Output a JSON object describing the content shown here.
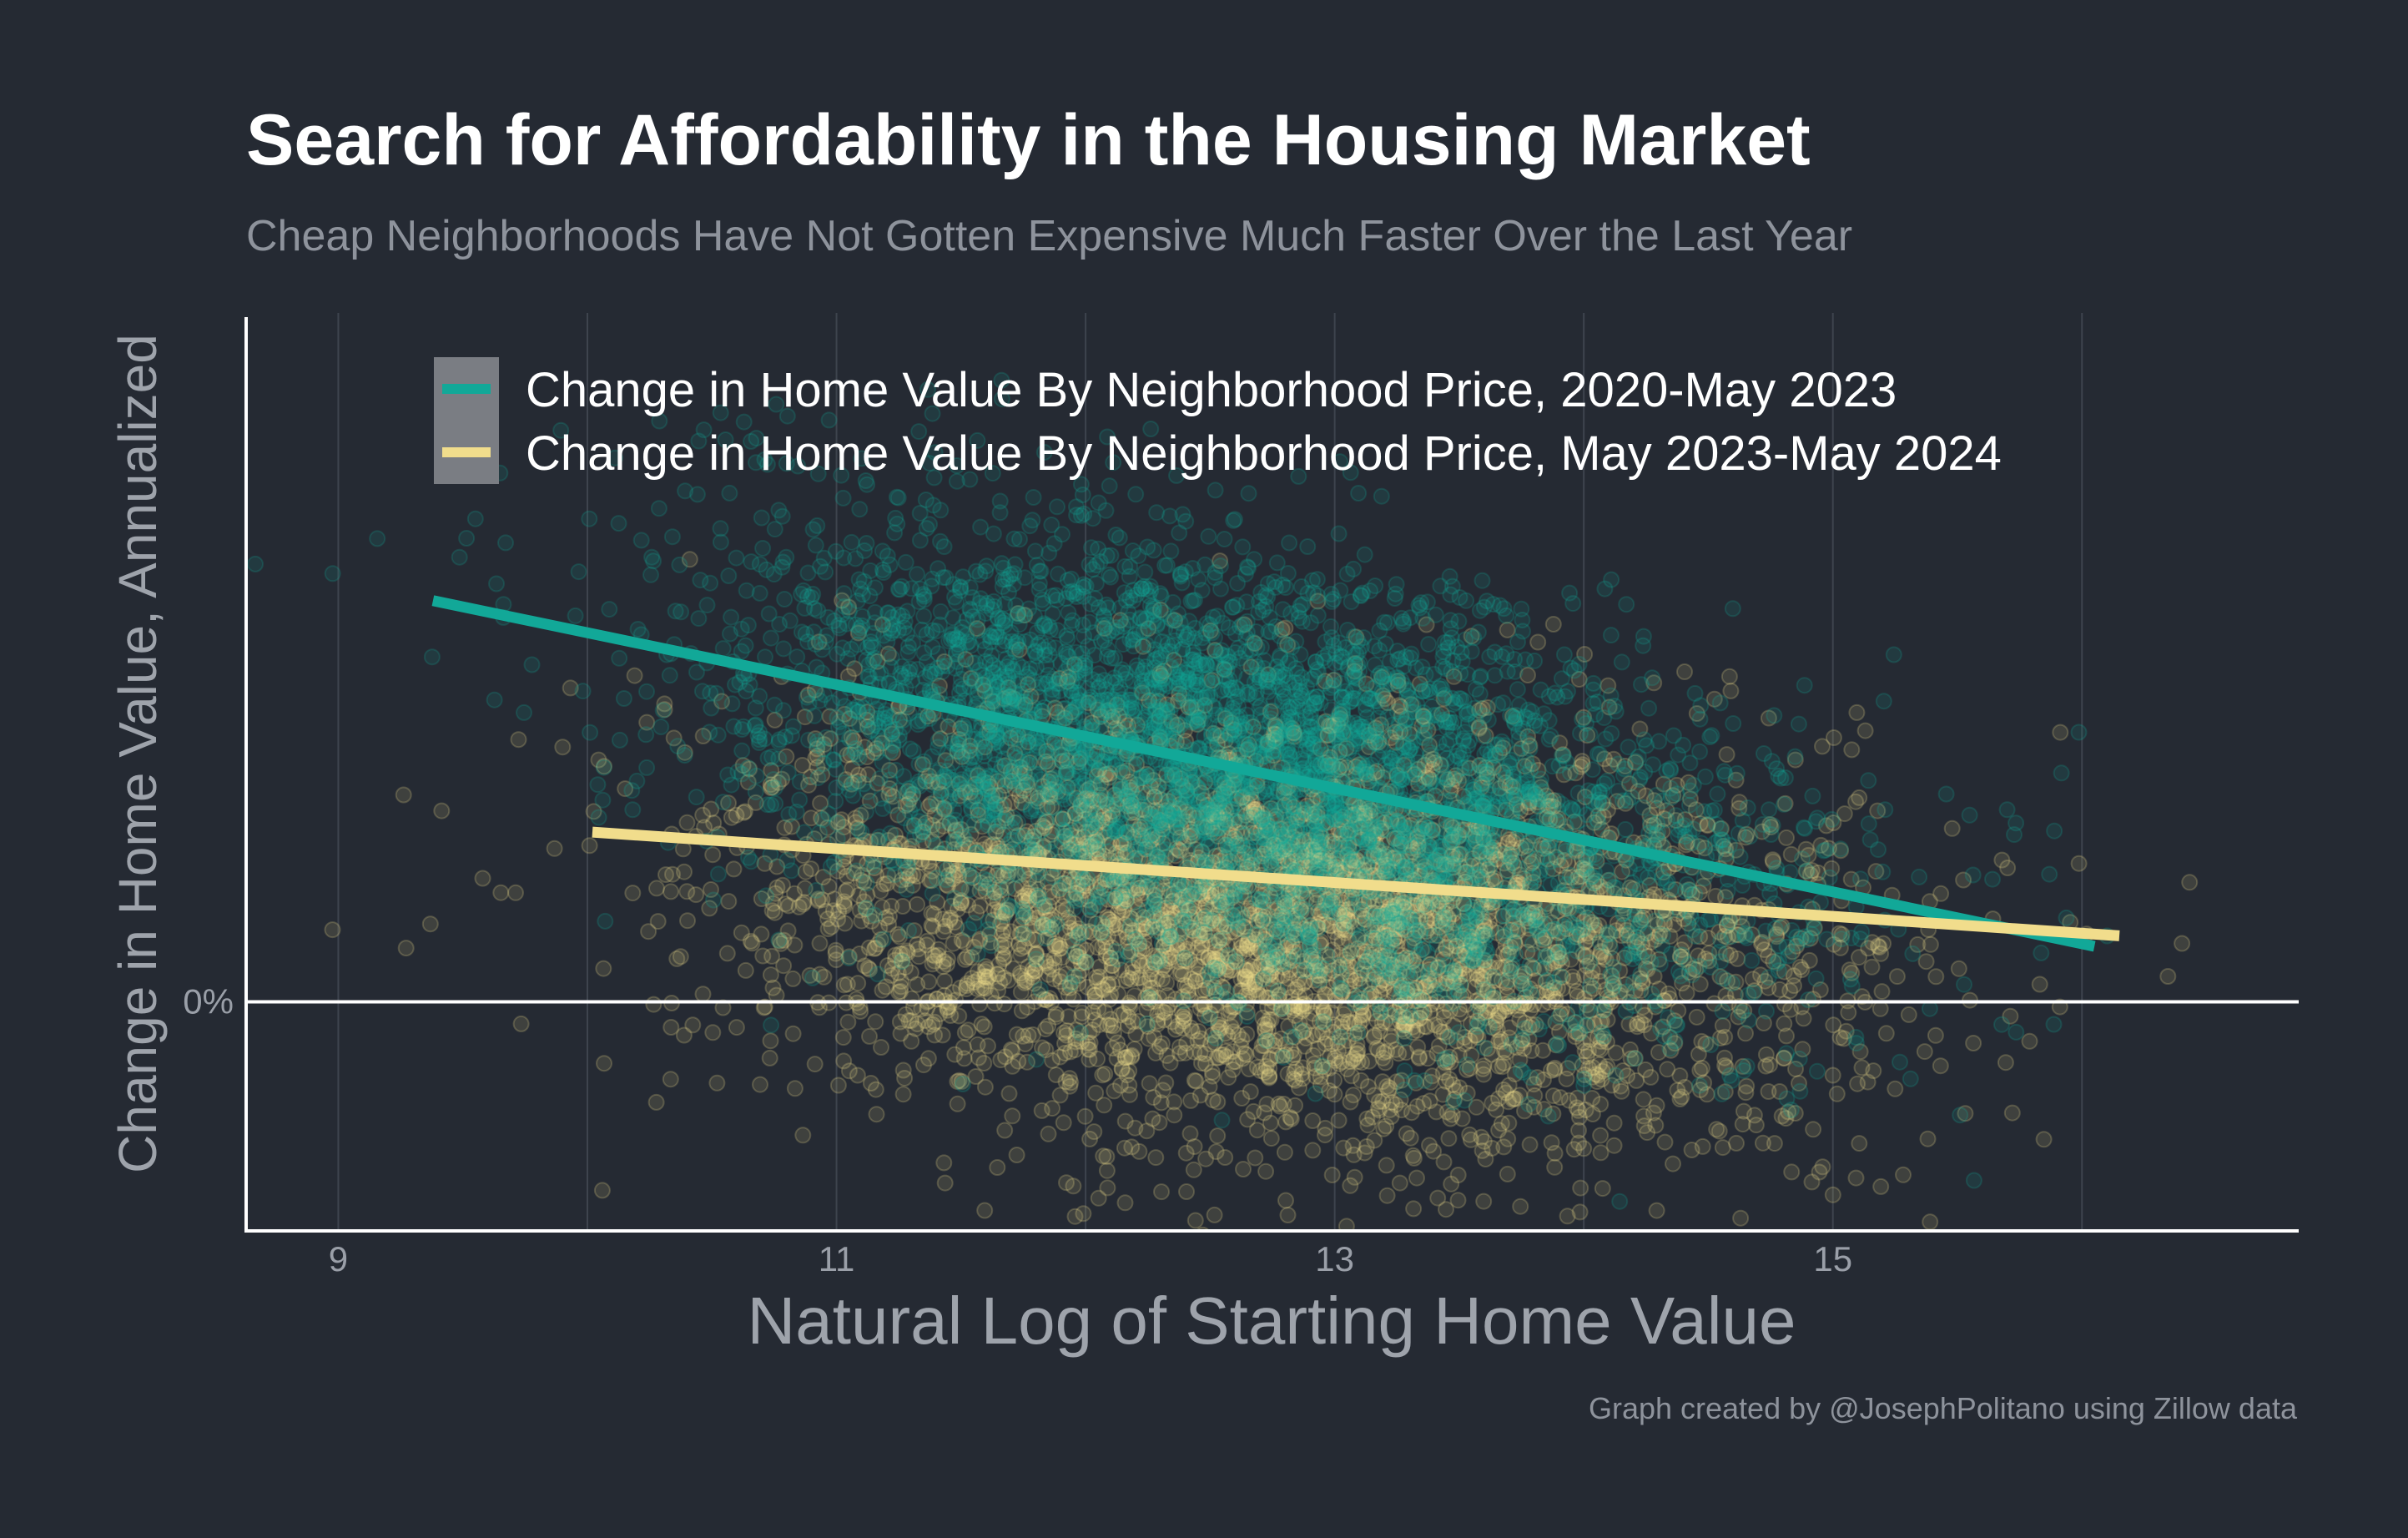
{
  "chart_data": {
    "type": "scatter",
    "title": "Search for Affordability in the Housing Market",
    "subtitle": "Cheap Neighborhoods Have Not Gotten Expensive Much Faster Over the Last Year",
    "xlabel": "Natural Log of Starting Home Value",
    "ylabel": "Change in Home Value, Annualized",
    "x_ticks": [
      {
        "value": 9,
        "label": "9"
      },
      {
        "value": 11,
        "label": "11"
      },
      {
        "value": 13,
        "label": "13"
      },
      {
        "value": 15,
        "label": "15"
      }
    ],
    "y_ticks": [
      {
        "value": 0,
        "label": "0%"
      }
    ],
    "xlim": [
      8.63,
      16.87
    ],
    "ylim": [
      -3.71,
      11.16
    ],
    "grid": "vertical",
    "legend_position": "top-left",
    "series": [
      {
        "name": "Change in Home Value By Neighborhood Price, 2020-May 2023",
        "color": "#12a898",
        "fit_line": [
          {
            "x": 9.38,
            "y": 6.5
          },
          {
            "x": 16.05,
            "y": 0.9
          }
        ],
        "cloud": {
          "center_x": 12.6,
          "center_y": 3.8,
          "spread_x": 1.05,
          "spread_y": 2.1,
          "tilt": -0.9
        }
      },
      {
        "name": "Change in Home Value By Neighborhood Price, May 2023-May 2024",
        "color": "#f1dd8c",
        "fit_line": [
          {
            "x": 10.02,
            "y": 2.75
          },
          {
            "x": 16.15,
            "y": 1.07
          }
        ],
        "cloud": {
          "center_x": 12.8,
          "center_y": 1.3,
          "spread_x": 1.05,
          "spread_y": 2.2,
          "tilt": -0.3
        }
      }
    ],
    "caption": "Graph created by @JosephPolitano using Zillow data"
  }
}
